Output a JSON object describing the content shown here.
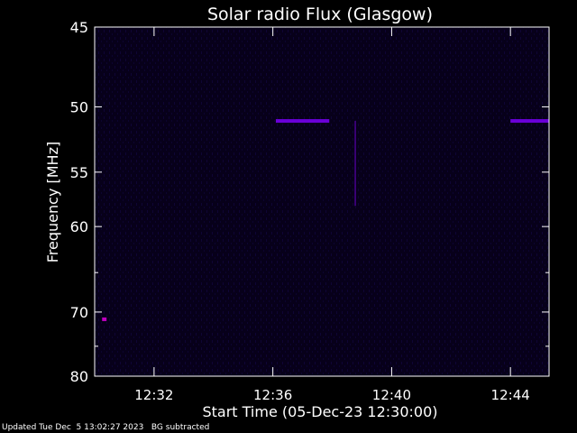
{
  "chart_data": {
    "type": "heatmap",
    "title": "Solar radio Flux (Glasgow)",
    "xlabel": "Start Time (05-Dec-23 12:30:00)",
    "ylabel": "Frequency [MHz]",
    "x_unit": "minutes after 12:30",
    "xlim": [
      0,
      15.3
    ],
    "x_ticks": [
      {
        "value": 2,
        "label": "12:32"
      },
      {
        "value": 6,
        "label": "12:36"
      },
      {
        "value": 10,
        "label": "12:40"
      },
      {
        "value": 14,
        "label": "12:44"
      }
    ],
    "y_scale": "reciprocal",
    "ylim": [
      45,
      80
    ],
    "y_ticks": [
      {
        "value": 45,
        "label": "45"
      },
      {
        "value": 50,
        "label": "50"
      },
      {
        "value": 55,
        "label": "55"
      },
      {
        "value": 60,
        "label": "60"
      },
      {
        "value": 70,
        "label": "70"
      },
      {
        "value": 80,
        "label": "80"
      }
    ],
    "y_minor_ticks": [
      65,
      75
    ],
    "background_color": "#07001a",
    "grid": false,
    "features": [
      {
        "name": "interference band",
        "freq": 51.0,
        "t_start": 6.1,
        "t_end": 7.9,
        "color": "#6a00d8"
      },
      {
        "name": "interference band",
        "freq": 51.0,
        "t_start": 14.0,
        "t_end": 15.3,
        "color": "#6a00d8"
      },
      {
        "name": "interference spot",
        "freq": 71.0,
        "t_start": 0.25,
        "t_end": 0.4,
        "color": "#c000c0"
      },
      {
        "name": "interference spike",
        "freq_start": 51.0,
        "freq_end": 58.0,
        "t_start": 8.75,
        "t_end": 8.8,
        "color": "#5a00b0"
      }
    ]
  },
  "footer": {
    "updated": "Updated Tue Dec  5 13:02:27 2023",
    "note": "BG subtracted"
  }
}
